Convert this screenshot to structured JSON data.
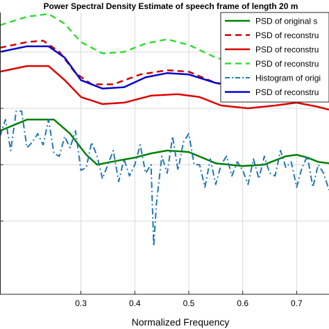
{
  "chart_data": {
    "type": "line",
    "title": "Power Spectral Density Estimate of speech frame of length 20 m",
    "xlabel": "Normalized Frequency",
    "ylabel": "",
    "xlim": [
      0.15,
      0.76
    ],
    "ylim": [
      0,
      10
    ],
    "xticks": [
      0.3,
      0.4,
      0.5,
      0.6,
      0.7
    ],
    "xtick_labels": [
      "0.3",
      "0.4",
      "0.5",
      "0.6",
      "0.7"
    ],
    "yticks": [
      2.6,
      4.6,
      6.6,
      8.6
    ],
    "grid": true,
    "legend_position": "top-right",
    "series": [
      {
        "name": "PSD of original s",
        "color": "#008000",
        "dash": "solid",
        "x": [
          0.15,
          0.2,
          0.25,
          0.28,
          0.31,
          0.33,
          0.37,
          0.4,
          0.43,
          0.46,
          0.5,
          0.55,
          0.6,
          0.64,
          0.68,
          0.7,
          0.72,
          0.74,
          0.76
        ],
        "y": [
          5.8,
          6.2,
          6.2,
          5.7,
          4.95,
          4.6,
          4.75,
          4.85,
          5.0,
          5.1,
          5.05,
          4.65,
          4.55,
          4.6,
          4.9,
          4.95,
          4.85,
          4.7,
          4.65
        ]
      },
      {
        "name": "PSD of reconstru",
        "color": "#cc0000",
        "dash": "dashed",
        "x": [
          0.15,
          0.2,
          0.23,
          0.26,
          0.29,
          0.32,
          0.36,
          0.41,
          0.46,
          0.5,
          0.55,
          0.6,
          0.66,
          0.7,
          0.73,
          0.76
        ],
        "y": [
          8.75,
          8.95,
          9.0,
          8.6,
          7.85,
          7.45,
          7.45,
          7.8,
          7.95,
          7.9,
          7.5,
          7.3,
          7.4,
          7.55,
          7.35,
          7.25
        ]
      },
      {
        "name": "PSD of reconstru",
        "color": "#dd0000",
        "dash": "solid",
        "x": [
          0.15,
          0.2,
          0.24,
          0.27,
          0.3,
          0.34,
          0.38,
          0.43,
          0.48,
          0.52,
          0.56,
          0.61,
          0.66,
          0.7,
          0.74,
          0.76
        ],
        "y": [
          7.9,
          8.1,
          8.1,
          7.6,
          7.0,
          6.75,
          6.8,
          7.05,
          7.1,
          7.0,
          6.7,
          6.6,
          6.7,
          6.8,
          6.65,
          6.55
        ]
      },
      {
        "name": "PSD of reconstru",
        "color": "#33dd33",
        "dash": "dashed",
        "x": [
          0.15,
          0.2,
          0.24,
          0.27,
          0.3,
          0.34,
          0.38,
          0.42,
          0.46,
          0.5,
          0.55,
          0.6,
          0.65,
          0.7,
          0.74,
          0.76
        ],
        "y": [
          9.55,
          9.85,
          9.95,
          9.6,
          8.95,
          8.55,
          8.6,
          8.9,
          9.05,
          8.85,
          8.4,
          8.15,
          8.2,
          8.3,
          8.1,
          8.0
        ]
      },
      {
        "name": "Histogram of origi",
        "color": "#1f77b4",
        "dash": "dashdot",
        "x": [
          0.15,
          0.16,
          0.17,
          0.18,
          0.19,
          0.2,
          0.21,
          0.22,
          0.23,
          0.24,
          0.25,
          0.26,
          0.27,
          0.28,
          0.29,
          0.3,
          0.31,
          0.32,
          0.33,
          0.34,
          0.35,
          0.36,
          0.37,
          0.38,
          0.39,
          0.4,
          0.41,
          0.42,
          0.43,
          0.435,
          0.44,
          0.45,
          0.46,
          0.47,
          0.48,
          0.49,
          0.5,
          0.51,
          0.52,
          0.53,
          0.54,
          0.55,
          0.56,
          0.57,
          0.58,
          0.59,
          0.6,
          0.61,
          0.62,
          0.63,
          0.64,
          0.65,
          0.66,
          0.67,
          0.68,
          0.69,
          0.7,
          0.71,
          0.72,
          0.73,
          0.74,
          0.75,
          0.76
        ],
        "y": [
          5.6,
          6.2,
          5.1,
          6.5,
          6.5,
          5.2,
          5.4,
          5.7,
          5.3,
          6.2,
          5.0,
          4.9,
          5.6,
          5.2,
          5.8,
          4.4,
          4.5,
          5.4,
          4.9,
          4.1,
          4.6,
          5.1,
          4.0,
          4.8,
          4.2,
          4.6,
          5.3,
          4.3,
          4.6,
          1.7,
          3.2,
          4.9,
          4.3,
          5.6,
          4.4,
          5.4,
          5.7,
          4.6,
          4.6,
          3.8,
          4.8,
          3.9,
          4.6,
          4.9,
          4.2,
          4.7,
          4.4,
          3.9,
          4.8,
          4.1,
          4.9,
          4.3,
          4.2,
          5.1,
          4.5,
          4.7,
          3.8,
          4.5,
          4.9,
          3.8,
          4.6,
          4.3,
          3.7
        ]
      },
      {
        "name": "PSD of reconstru",
        "color": "#0000cc",
        "dash": "solid",
        "x": [
          0.15,
          0.2,
          0.24,
          0.27,
          0.3,
          0.34,
          0.38,
          0.42,
          0.46,
          0.5,
          0.55,
          0.6,
          0.65,
          0.7,
          0.74,
          0.76
        ],
        "y": [
          8.6,
          8.8,
          8.8,
          8.4,
          7.6,
          7.3,
          7.35,
          7.7,
          7.85,
          7.8,
          7.5,
          7.4,
          7.5,
          7.6,
          7.45,
          7.4
        ]
      }
    ]
  }
}
